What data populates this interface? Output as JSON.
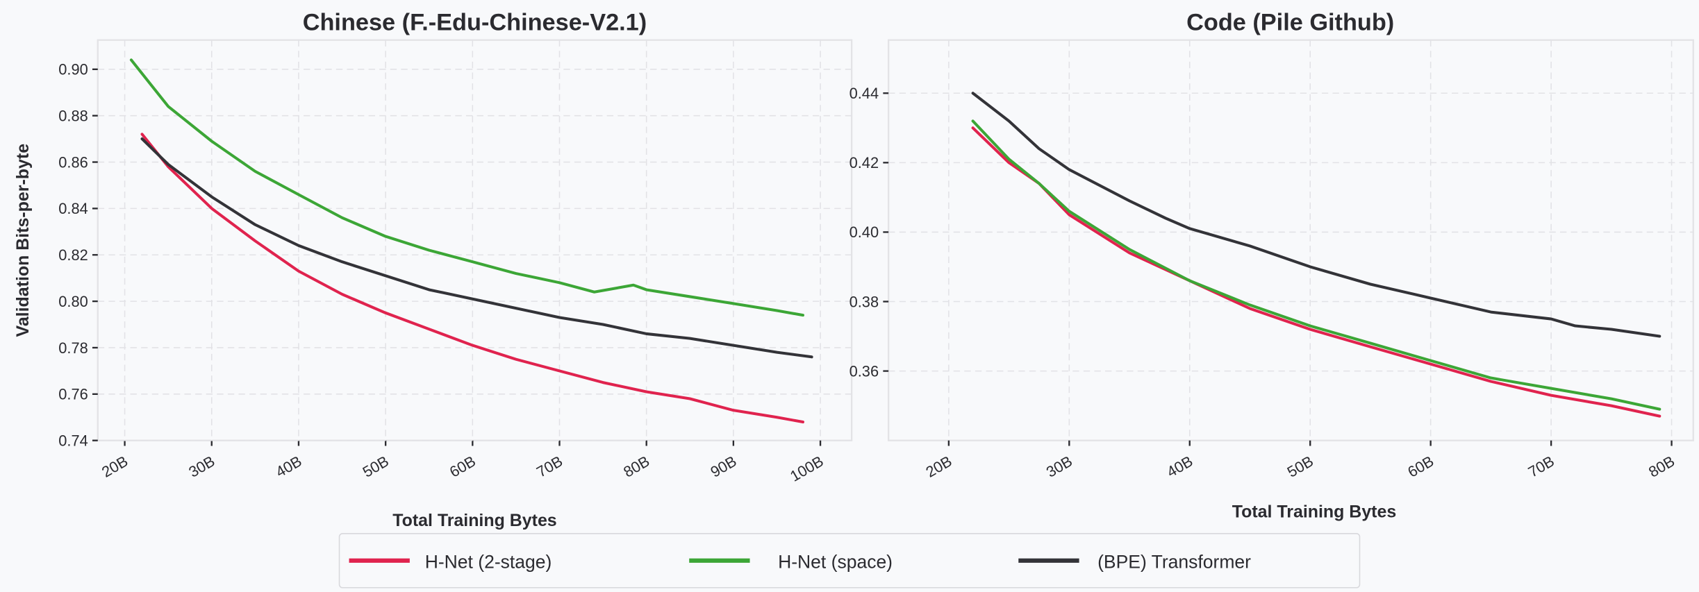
{
  "chart_data": [
    {
      "type": "line",
      "title": "Chinese (F.-Edu-Chinese-V2.1)",
      "xlabel": "Total Training Bytes",
      "ylabel": "Validation Bits-per-byte",
      "xlim": [
        16.9,
        103.6
      ],
      "ylim": [
        0.74,
        0.9126
      ],
      "xticks": [
        20,
        30,
        40,
        50,
        60,
        70,
        80,
        90,
        100
      ],
      "xtick_labels": [
        "20B",
        "30B",
        "40B",
        "50B",
        "60B",
        "70B",
        "80B",
        "90B",
        "100B"
      ],
      "yticks": [
        0.74,
        0.76,
        0.78,
        0.8,
        0.82,
        0.84,
        0.86,
        0.88,
        0.9
      ],
      "ytick_labels": [
        "0.74",
        "0.76",
        "0.78",
        "0.80",
        "0.82",
        "0.84",
        "0.86",
        "0.88",
        "0.90"
      ],
      "grid": true,
      "series": [
        {
          "name": "H-Net (2-stage)",
          "color": "#e0234e",
          "x": [
            22,
            25,
            30,
            35,
            40,
            45,
            50,
            55,
            60,
            65,
            70,
            75,
            80,
            85,
            90,
            95,
            98
          ],
          "y": [
            0.872,
            0.858,
            0.84,
            0.826,
            0.813,
            0.803,
            0.795,
            0.788,
            0.781,
            0.775,
            0.77,
            0.765,
            0.761,
            0.758,
            0.753,
            0.75,
            0.748
          ]
        },
        {
          "name": "H-Net (space)",
          "color": "#3ca636",
          "x": [
            20.75,
            25,
            30,
            35,
            40,
            45,
            50,
            55,
            60,
            65,
            70,
            74,
            78.5,
            80,
            85,
            90,
            95,
            98
          ],
          "y": [
            0.904,
            0.884,
            0.869,
            0.856,
            0.846,
            0.836,
            0.828,
            0.822,
            0.817,
            0.812,
            0.808,
            0.804,
            0.807,
            0.805,
            0.802,
            0.799,
            0.796,
            0.794
          ]
        },
        {
          "name": "(BPE) Transformer",
          "color": "#333338",
          "x": [
            22,
            25,
            30,
            35,
            40,
            45,
            50,
            55,
            60,
            65,
            70,
            75,
            80,
            85,
            90,
            95,
            99
          ],
          "y": [
            0.87,
            0.859,
            0.845,
            0.833,
            0.824,
            0.817,
            0.811,
            0.805,
            0.801,
            0.797,
            0.793,
            0.79,
            0.786,
            0.784,
            0.781,
            0.778,
            0.776
          ]
        }
      ]
    },
    {
      "type": "line",
      "title": "Code (Pile Github)",
      "xlabel": "Total Training Bytes",
      "ylabel": "",
      "xlim": [
        15,
        81.8
      ],
      "ylim": [
        0.34,
        0.4553
      ],
      "xticks": [
        20,
        30,
        40,
        50,
        60,
        70,
        80
      ],
      "xtick_labels": [
        "20B",
        "30B",
        "40B",
        "50B",
        "60B",
        "70B",
        "80B"
      ],
      "yticks": [
        0.36,
        0.38,
        0.4,
        0.42,
        0.44
      ],
      "ytick_labels": [
        "0.36",
        "0.38",
        "0.40",
        "0.42",
        "0.44"
      ],
      "grid": true,
      "series": [
        {
          "name": "H-Net (2-stage)",
          "color": "#e0234e",
          "x": [
            22,
            25,
            27.5,
            30,
            35,
            40,
            45,
            50,
            55,
            60,
            65,
            70,
            75,
            79
          ],
          "y": [
            0.43,
            0.42,
            0.414,
            0.405,
            0.394,
            0.386,
            0.378,
            0.372,
            0.367,
            0.362,
            0.357,
            0.353,
            0.35,
            0.347
          ]
        },
        {
          "name": "H-Net (space)",
          "color": "#3ca636",
          "x": [
            22,
            25,
            27.5,
            30,
            35,
            40,
            45,
            50,
            55,
            60,
            65,
            70,
            75,
            79
          ],
          "y": [
            0.432,
            0.421,
            0.414,
            0.406,
            0.395,
            0.386,
            0.379,
            0.373,
            0.368,
            0.363,
            0.358,
            0.355,
            0.352,
            0.349
          ]
        },
        {
          "name": "(BPE) Transformer",
          "color": "#333338",
          "x": [
            22,
            25,
            27.5,
            30,
            35,
            38,
            40,
            45,
            50,
            55,
            60,
            65,
            70,
            72,
            75,
            79
          ],
          "y": [
            0.44,
            0.432,
            0.424,
            0.418,
            0.409,
            0.404,
            0.401,
            0.396,
            0.39,
            0.385,
            0.381,
            0.377,
            0.375,
            0.373,
            0.372,
            0.37
          ]
        }
      ]
    }
  ],
  "legend": {
    "placement": "bottom-center",
    "items": [
      "H-Net (2-stage)",
      "H-Net (space)",
      "(BPE) Transformer"
    ]
  }
}
